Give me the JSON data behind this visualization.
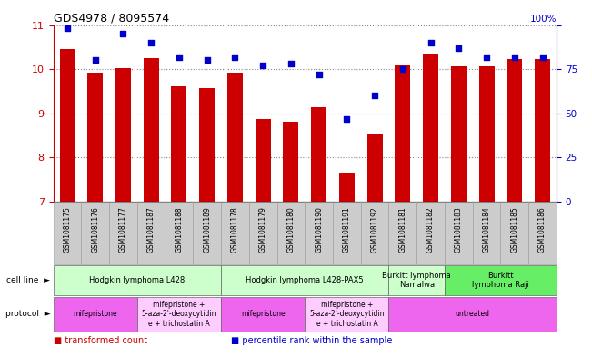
{
  "title": "GDS4978 / 8095574",
  "samples": [
    "GSM1081175",
    "GSM1081176",
    "GSM1081177",
    "GSM1081187",
    "GSM1081188",
    "GSM1081189",
    "GSM1081178",
    "GSM1081179",
    "GSM1081180",
    "GSM1081190",
    "GSM1081191",
    "GSM1081192",
    "GSM1081181",
    "GSM1081182",
    "GSM1081183",
    "GSM1081184",
    "GSM1081185",
    "GSM1081186"
  ],
  "bar_values": [
    10.45,
    9.92,
    10.02,
    10.25,
    9.62,
    9.57,
    9.92,
    8.88,
    8.82,
    9.13,
    7.66,
    8.55,
    10.09,
    10.35,
    10.07,
    10.07,
    10.22,
    10.23
  ],
  "dot_values": [
    98,
    80,
    95,
    90,
    82,
    80,
    82,
    77,
    78,
    72,
    47,
    60,
    75,
    90,
    87,
    82,
    82,
    82
  ],
  "ylim_left": [
    7,
    11
  ],
  "ylim_right": [
    0,
    100
  ],
  "yticks_left": [
    7,
    8,
    9,
    10,
    11
  ],
  "yticks_right": [
    0,
    25,
    50,
    75,
    100
  ],
  "bar_color": "#cc0000",
  "dot_color": "#0000cc",
  "grid_color": "#888888",
  "cell_line_groups": [
    {
      "label": "Hodgkin lymphoma L428",
      "start": 0,
      "end": 5,
      "color": "#ccffcc"
    },
    {
      "label": "Hodgkin lymphoma L428-PAX5",
      "start": 6,
      "end": 11,
      "color": "#ccffcc"
    },
    {
      "label": "Burkitt lymphoma\nNamalwa",
      "start": 12,
      "end": 13,
      "color": "#ccffcc"
    },
    {
      "label": "Burkitt\nlymphoma Raji",
      "start": 14,
      "end": 17,
      "color": "#66ee66"
    }
  ],
  "protocol_groups": [
    {
      "label": "mifepristone",
      "start": 0,
      "end": 2,
      "color": "#ee66ee"
    },
    {
      "label": "mifepristone +\n5-aza-2'-deoxycytidin\ne + trichostatin A",
      "start": 3,
      "end": 5,
      "color": "#ffccff"
    },
    {
      "label": "mifepristone",
      "start": 6,
      "end": 8,
      "color": "#ee66ee"
    },
    {
      "label": "mifepristone +\n5-aza-2'-deoxycytidin\ne + trichostatin A",
      "start": 9,
      "end": 11,
      "color": "#ffccff"
    },
    {
      "label": "untreated",
      "start": 12,
      "end": 17,
      "color": "#ee66ee"
    }
  ],
  "legend_items": [
    {
      "label": "transformed count",
      "color": "#cc0000"
    },
    {
      "label": "percentile rank within the sample",
      "color": "#0000cc"
    }
  ],
  "left_label": "cell line",
  "protocol_label": "protocol",
  "tick_label_color": "#888888",
  "xtick_bg_color": "#cccccc"
}
